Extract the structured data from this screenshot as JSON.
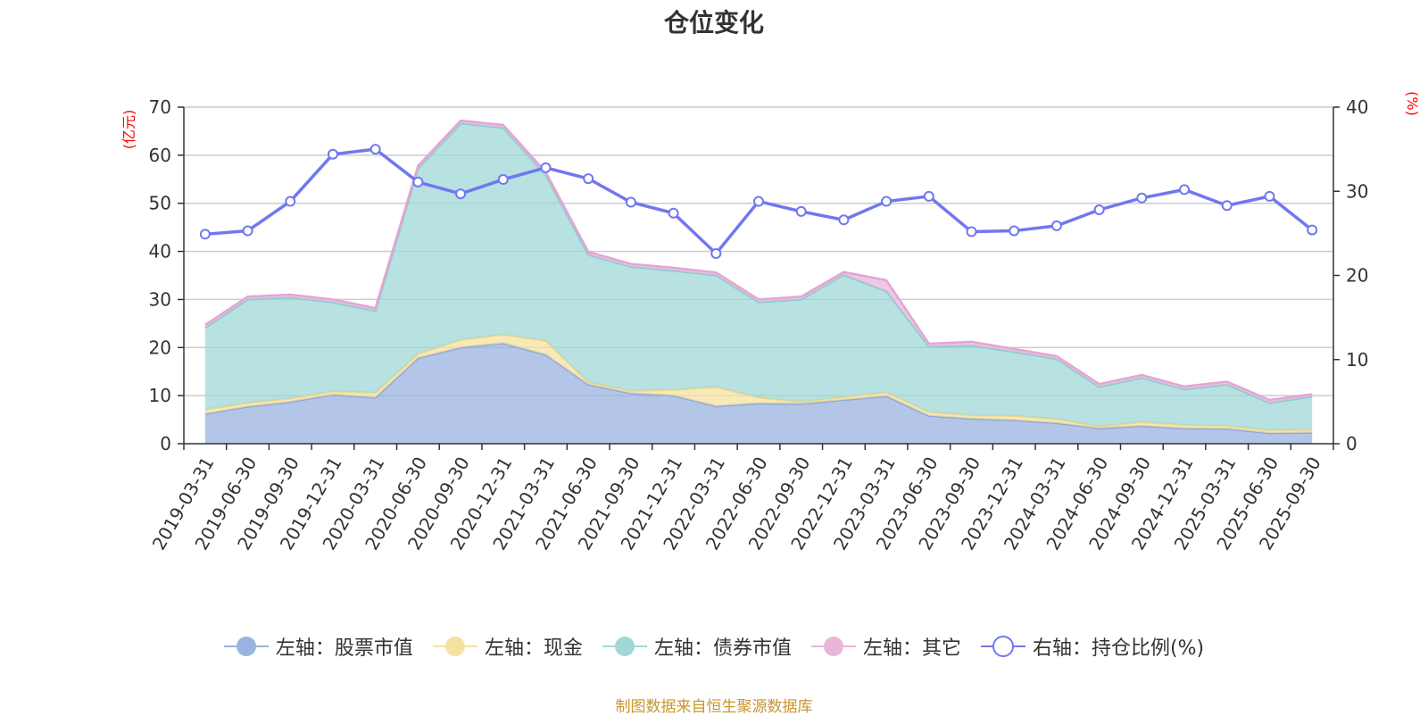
{
  "chart_data": {
    "type": "area",
    "title": "仓位变化",
    "left_unit": "(亿元)",
    "right_unit": "(%)",
    "left_ylim": [
      0,
      70
    ],
    "left_ticks": [
      "0",
      "10",
      "20",
      "30",
      "40",
      "50",
      "60",
      "70"
    ],
    "right_ylim": [
      0,
      40
    ],
    "right_ticks": [
      "0",
      "10",
      "20",
      "30",
      "40"
    ],
    "categories": [
      "2019-03-31",
      "2019-06-30",
      "2019-09-30",
      "2019-12-31",
      "2020-03-31",
      "2020-06-30",
      "2020-09-30",
      "2020-12-31",
      "2021-03-31",
      "2021-06-30",
      "2021-09-30",
      "2021-12-31",
      "2022-03-31",
      "2022-06-30",
      "2022-09-30",
      "2022-12-31",
      "2023-03-31",
      "2023-06-30",
      "2023-09-30",
      "2023-12-31",
      "2024-03-31",
      "2024-06-30",
      "2024-09-30",
      "2024-12-31",
      "2025-03-31",
      "2025-06-30",
      "2025-09-30"
    ],
    "series": [
      {
        "name": "左轴：股票市值",
        "axis": "left",
        "color": "#9ab3e0",
        "values": [
          6.2,
          7.7,
          8.7,
          10.2,
          9.6,
          17.8,
          20.0,
          20.9,
          18.5,
          12.3,
          10.5,
          10.0,
          7.8,
          8.4,
          8.3,
          9.1,
          9.9,
          5.8,
          5.2,
          4.9,
          4.3,
          3.2,
          3.7,
          3.2,
          3.1,
          2.2,
          2.3
        ]
      },
      {
        "name": "左轴：现金",
        "axis": "left",
        "color": "#f5e2a0",
        "values": [
          0.9,
          0.8,
          0.7,
          0.7,
          1.0,
          0.9,
          1.6,
          1.8,
          2.9,
          0.5,
          0.5,
          1.2,
          4.0,
          1.2,
          0.4,
          0.6,
          0.8,
          0.8,
          0.7,
          0.9,
          0.8,
          0.4,
          0.8,
          0.7,
          0.6,
          0.6,
          0.6
        ]
      },
      {
        "name": "左轴：债券市值",
        "axis": "left",
        "color": "#9fd8d7",
        "values": [
          17.0,
          21.5,
          21.0,
          18.5,
          17.0,
          38.5,
          45.0,
          43.0,
          34.5,
          26.5,
          25.8,
          24.8,
          23.2,
          19.8,
          21.3,
          25.4,
          21.0,
          13.6,
          14.5,
          13.3,
          12.5,
          8.2,
          9.2,
          7.4,
          8.6,
          5.7,
          6.9
        ]
      },
      {
        "name": "左轴：其它",
        "axis": "left",
        "color": "#e8b6db",
        "values": [
          0.6,
          0.6,
          0.6,
          0.6,
          0.6,
          0.6,
          0.6,
          0.6,
          0.6,
          0.6,
          0.6,
          0.6,
          0.6,
          0.6,
          0.6,
          0.6,
          2.3,
          0.6,
          0.8,
          0.6,
          0.6,
          0.6,
          0.6,
          0.6,
          0.6,
          0.6,
          0.5
        ]
      },
      {
        "name": "右轴：持仓比例(%)",
        "axis": "right",
        "color": "#7177f0",
        "values": [
          24.9,
          25.3,
          28.8,
          34.4,
          35.0,
          31.1,
          29.7,
          31.4,
          32.8,
          31.5,
          28.7,
          27.4,
          22.6,
          28.8,
          27.6,
          26.6,
          28.8,
          29.4,
          25.2,
          25.3,
          25.9,
          27.8,
          29.2,
          30.2,
          28.3,
          29.4,
          25.4
        ]
      }
    ]
  },
  "legend": [
    {
      "label": "左轴：股票市值",
      "color": "#9ab3e0",
      "style": "filled"
    },
    {
      "label": "左轴：现金",
      "color": "#f5e2a0",
      "style": "filled"
    },
    {
      "label": "左轴：债券市值",
      "color": "#9fd8d7",
      "style": "filled"
    },
    {
      "label": "左轴：其它",
      "color": "#e8b6db",
      "style": "filled"
    },
    {
      "label": "右轴：持仓比例(%)",
      "color": "#7177f0",
      "style": "hollow"
    }
  ],
  "source_note": "制图数据来自恒生聚源数据库"
}
